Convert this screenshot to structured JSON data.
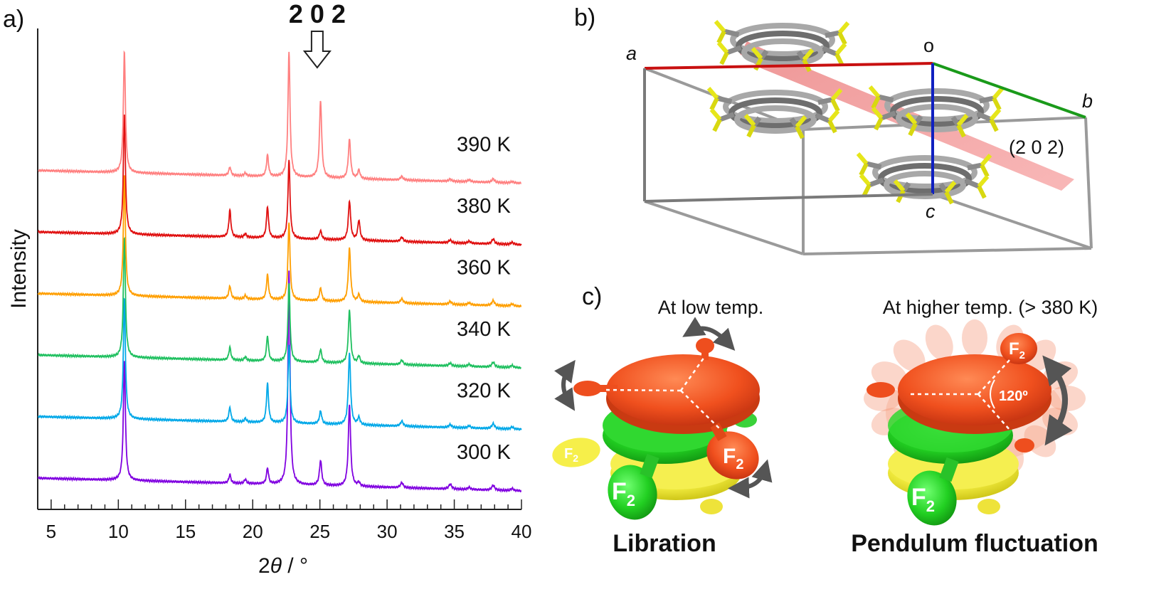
{
  "panels": {
    "a": "a)",
    "b": "b)",
    "c": "c)"
  },
  "chart_data": {
    "type": "line",
    "xlabel_prefix": "2",
    "xlabel_theta": "θ",
    "xlabel_suffix": " / °",
    "ylabel": "Intensity",
    "xlim": [
      4,
      40
    ],
    "xticks": [
      5,
      10,
      15,
      20,
      25,
      30,
      35,
      40
    ],
    "annotation": "2 0 2",
    "annotation_x": 24.8,
    "peaks": [
      {
        "pos": 10.45,
        "width": 0.09
      },
      {
        "pos": 18.3,
        "width": 0.09
      },
      {
        "pos": 19.45,
        "width": 0.09
      },
      {
        "pos": 21.1,
        "width": 0.09
      },
      {
        "pos": 22.7,
        "width": 0.09
      },
      {
        "pos": 25.05,
        "width": 0.1
      },
      {
        "pos": 27.2,
        "width": 0.1
      },
      {
        "pos": 27.9,
        "width": 0.1
      },
      {
        "pos": 31.1,
        "width": 0.12
      },
      {
        "pos": 34.7,
        "width": 0.12
      },
      {
        "pos": 36.1,
        "width": 0.12
      },
      {
        "pos": 37.9,
        "width": 0.12
      },
      {
        "pos": 39.3,
        "width": 0.12
      }
    ],
    "series": [
      {
        "name": "300 K",
        "color": "#8000e0",
        "amplitudes": [
          170,
          12,
          6,
          22,
          300,
          35,
          115,
          5,
          7,
          7,
          3,
          7,
          3
        ]
      },
      {
        "name": "320 K",
        "color": "#00a8e8",
        "amplitudes": [
          170,
          20,
          5,
          55,
          110,
          18,
          100,
          10,
          7,
          4,
          3,
          7,
          3
        ]
      },
      {
        "name": "340 K",
        "color": "#20c060",
        "amplitudes": [
          170,
          18,
          5,
          35,
          110,
          18,
          75,
          10,
          6,
          4,
          3,
          7,
          3
        ]
      },
      {
        "name": "360 K",
        "color": "#ff9f00",
        "amplitudes": [
          170,
          18,
          5,
          35,
          110,
          18,
          75,
          10,
          6,
          4,
          3,
          7,
          3
        ]
      },
      {
        "name": "380 K",
        "color": "#e01010",
        "amplitudes": [
          170,
          38,
          5,
          44,
          110,
          12,
          55,
          28,
          6,
          4,
          3,
          7,
          3
        ]
      },
      {
        "name": "390 K",
        "color": "#ff8080",
        "amplitudes": [
          170,
          12,
          4,
          30,
          176,
          108,
          55,
          12,
          5,
          3,
          3,
          5,
          2
        ]
      }
    ]
  },
  "panel_b": {
    "axis_a": "a",
    "axis_o": "o",
    "axis_b": "b",
    "axis_c": "c",
    "plane": "(2 0 2)"
  },
  "panel_c": {
    "left_heading": "At low temp.",
    "right_heading": "At higher temp. (> 380 K)",
    "left_caption": "Libration",
    "right_caption": "Pendulum fluctuation",
    "angle": "120º",
    "f_text": "F",
    "f_sub": "2"
  }
}
